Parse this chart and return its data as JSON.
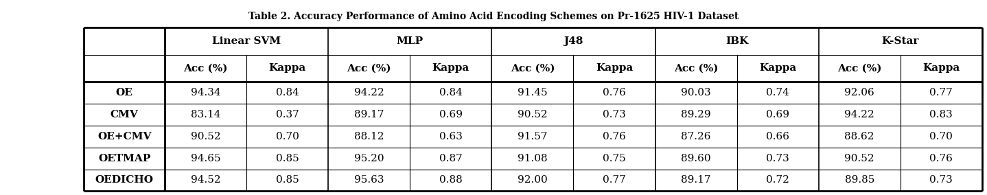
{
  "title": "Table 2. Accuracy Performance of Amino Acid Encoding Schemes on Pr-1625 HIV-1 Dataset",
  "classifiers": [
    "Linear SVM",
    "MLP",
    "J48",
    "IBK",
    "K-Star"
  ],
  "row_labels": [
    "OE",
    "CMV",
    "OE+CMV",
    "OETMAP",
    "OEDICHO"
  ],
  "col_headers_pair": [
    "Acc (%)",
    "Kappa"
  ],
  "data": [
    [
      "94.34",
      "0.84",
      "94.22",
      "0.84",
      "91.45",
      "0.76",
      "90.03",
      "0.74",
      "92.06",
      "0.77"
    ],
    [
      "83.14",
      "0.37",
      "89.17",
      "0.69",
      "90.52",
      "0.73",
      "89.29",
      "0.69",
      "94.22",
      "0.83"
    ],
    [
      "90.52",
      "0.70",
      "88.12",
      "0.63",
      "91.57",
      "0.76",
      "87.26",
      "0.66",
      "88.62",
      "0.70"
    ],
    [
      "94.65",
      "0.85",
      "95.20",
      "0.87",
      "91.08",
      "0.75",
      "89.60",
      "0.73",
      "90.52",
      "0.76"
    ],
    [
      "94.52",
      "0.85",
      "95.63",
      "0.88",
      "92.00",
      "0.77",
      "89.17",
      "0.72",
      "89.85",
      "0.73"
    ]
  ],
  "title_fontsize": 10,
  "header_fontsize": 11,
  "cell_fontsize": 11,
  "row_label_fontsize": 11,
  "bg_color": "#ffffff"
}
